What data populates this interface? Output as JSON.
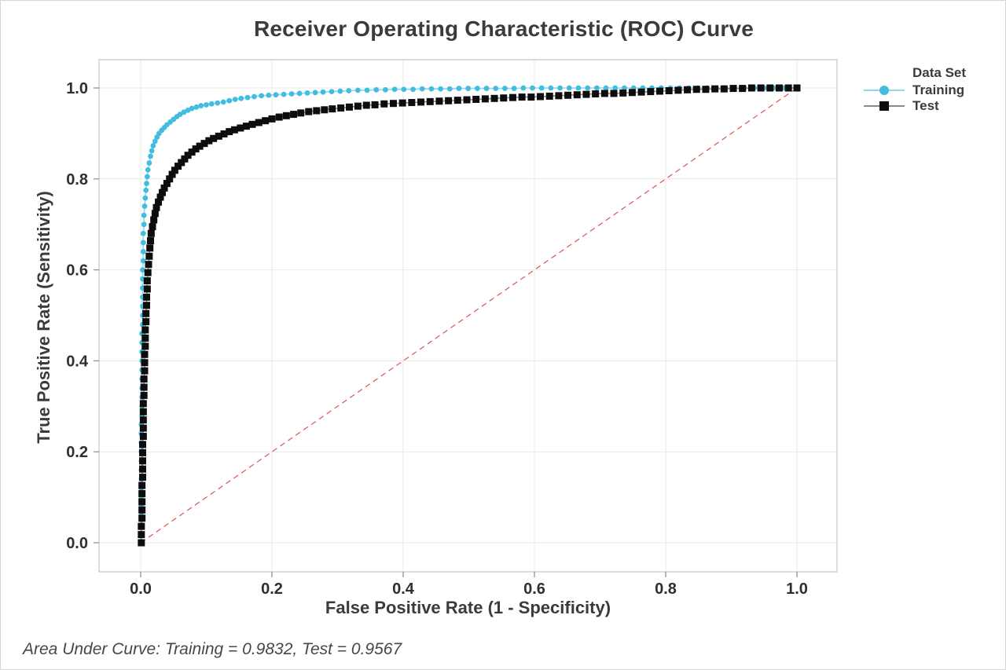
{
  "figure": {
    "footer": "Area Under Curve: Training = 0.9832, Test = 0.9567"
  },
  "chart_data": {
    "type": "line",
    "title": "Receiver Operating Characteristic (ROC) Curve",
    "xlabel": "False Positive Rate (1 - Specificity)",
    "ylabel": "True Positive Rate (Sensitivity)",
    "xlim": [
      0,
      1
    ],
    "ylim": [
      0,
      1
    ],
    "grid": true,
    "xticks": {
      "values": [
        0,
        0.2,
        0.4,
        0.6,
        0.8,
        1.0
      ],
      "labels": [
        "0.0",
        "0.2",
        "0.4",
        "0.6",
        "0.8",
        "1.0"
      ]
    },
    "yticks": {
      "values": [
        0,
        0.2,
        0.4,
        0.6,
        0.8,
        1.0
      ],
      "labels": [
        "0.0",
        "0.2",
        "0.4",
        "0.6",
        "0.8",
        "1.0"
      ]
    },
    "legend": {
      "title": "Data Set",
      "position": "right"
    },
    "annotations": {
      "area_under_curve": {
        "Training": 0.9832,
        "Test": 0.9567
      }
    },
    "reference_line": {
      "name": "chance-diagonal",
      "from": [
        0,
        0
      ],
      "to": [
        1,
        1
      ],
      "style": "dashed",
      "color": "#e05254"
    },
    "colors": {
      "grid": "#e9e9e9",
      "plot_border": "#c6c6c6",
      "tick_mark": "#8a8a8a",
      "tick_text": "#2f2f2f"
    },
    "series": [
      {
        "name": "Training",
        "marker": "circle",
        "marker_color": "#41bedf",
        "line_color": "#8fd7ec",
        "auc": 0.9832,
        "points": [
          [
            0,
            0
          ],
          [
            0,
            0.02
          ],
          [
            0.001,
            0.04
          ],
          [
            0.001,
            0.06
          ],
          [
            0.001,
            0.08
          ],
          [
            0.001,
            0.1
          ],
          [
            0.001,
            0.12
          ],
          [
            0.001,
            0.14
          ],
          [
            0.001,
            0.16
          ],
          [
            0.001,
            0.18
          ],
          [
            0.001,
            0.2
          ],
          [
            0.001,
            0.22
          ],
          [
            0.001,
            0.24
          ],
          [
            0.001,
            0.26
          ],
          [
            0.002,
            0.28
          ],
          [
            0.002,
            0.3
          ],
          [
            0.002,
            0.32
          ],
          [
            0.002,
            0.34
          ],
          [
            0.002,
            0.36
          ],
          [
            0.002,
            0.38
          ],
          [
            0.002,
            0.4
          ],
          [
            0.002,
            0.42
          ],
          [
            0.002,
            0.44
          ],
          [
            0.002,
            0.46
          ],
          [
            0.003,
            0.48
          ],
          [
            0.003,
            0.5
          ],
          [
            0.003,
            0.52
          ],
          [
            0.003,
            0.54
          ],
          [
            0.003,
            0.56
          ],
          [
            0.003,
            0.58
          ],
          [
            0.003,
            0.6
          ],
          [
            0.004,
            0.62
          ],
          [
            0.004,
            0.64
          ],
          [
            0.004,
            0.66
          ],
          [
            0.004,
            0.68
          ],
          [
            0.005,
            0.7
          ],
          [
            0.005,
            0.72
          ],
          [
            0.006,
            0.74
          ],
          [
            0.007,
            0.758
          ],
          [
            0.008,
            0.775
          ],
          [
            0.009,
            0.79
          ],
          [
            0.01,
            0.805
          ],
          [
            0.011,
            0.82
          ],
          [
            0.013,
            0.835
          ],
          [
            0.015,
            0.85
          ],
          [
            0.017,
            0.862
          ],
          [
            0.019,
            0.873
          ],
          [
            0.022,
            0.883
          ],
          [
            0.025,
            0.892
          ],
          [
            0.028,
            0.9
          ],
          [
            0.032,
            0.907
          ],
          [
            0.036,
            0.913
          ],
          [
            0.04,
            0.919
          ],
          [
            0.045,
            0.925
          ],
          [
            0.05,
            0.931
          ],
          [
            0.055,
            0.937
          ],
          [
            0.06,
            0.942
          ],
          [
            0.066,
            0.947
          ],
          [
            0.072,
            0.951
          ],
          [
            0.078,
            0.955
          ],
          [
            0.085,
            0.958
          ],
          [
            0.092,
            0.961
          ],
          [
            0.1,
            0.963
          ],
          [
            0.108,
            0.965
          ],
          [
            0.117,
            0.967
          ],
          [
            0.126,
            0.969
          ],
          [
            0.135,
            0.972
          ],
          [
            0.144,
            0.975
          ],
          [
            0.153,
            0.977
          ],
          [
            0.163,
            0.979
          ],
          [
            0.173,
            0.981
          ],
          [
            0.184,
            0.983
          ],
          [
            0.195,
            0.984
          ],
          [
            0.206,
            0.985
          ],
          [
            0.218,
            0.986
          ],
          [
            0.23,
            0.987
          ],
          [
            0.242,
            0.988
          ],
          [
            0.254,
            0.989
          ],
          [
            0.266,
            0.99
          ],
          [
            0.278,
            0.991
          ],
          [
            0.291,
            0.992
          ],
          [
            0.304,
            0.993
          ],
          [
            0.317,
            0.994
          ],
          [
            0.331,
            0.995
          ],
          [
            0.345,
            0.995
          ],
          [
            0.359,
            0.996
          ],
          [
            0.373,
            0.996
          ],
          [
            0.387,
            0.997
          ],
          [
            0.401,
            0.997
          ],
          [
            0.415,
            0.997
          ],
          [
            0.429,
            0.998
          ],
          [
            0.443,
            0.998
          ],
          [
            0.457,
            0.998
          ],
          [
            0.471,
            0.998
          ],
          [
            0.485,
            0.999
          ],
          [
            0.499,
            0.999
          ],
          [
            0.513,
            0.999
          ],
          [
            0.527,
            0.999
          ],
          [
            0.541,
            0.999
          ],
          [
            0.555,
            0.999
          ],
          [
            0.569,
            0.999
          ],
          [
            0.583,
            1
          ],
          [
            0.597,
            1
          ],
          [
            0.611,
            1
          ],
          [
            0.625,
            1
          ],
          [
            0.639,
            1
          ],
          [
            0.653,
            1
          ],
          [
            0.667,
            1
          ],
          [
            0.681,
            1
          ],
          [
            0.695,
            1
          ],
          [
            0.709,
            1
          ],
          [
            0.723,
            1
          ],
          [
            0.737,
            1
          ],
          [
            0.751,
            1
          ],
          [
            0.765,
            1
          ],
          [
            0.779,
            1
          ],
          [
            0.793,
            1
          ],
          [
            0.807,
            1
          ],
          [
            0.821,
            1
          ],
          [
            0.835,
            1
          ],
          [
            0.849,
            1
          ],
          [
            0.863,
            1
          ],
          [
            0.877,
            1
          ],
          [
            0.891,
            1
          ],
          [
            0.905,
            1
          ],
          [
            0.92,
            1
          ],
          [
            0.935,
            1
          ],
          [
            0.95,
            1
          ],
          [
            0.965,
            1
          ],
          [
            0.98,
            1
          ],
          [
            1,
            1
          ]
        ]
      },
      {
        "name": "Test",
        "marker": "square",
        "marker_color": "#0d0d0d",
        "line_color": "#8a8a8a",
        "auc": 0.9567,
        "points": [
          [
            0.001,
            0
          ],
          [
            0.001,
            0.018
          ],
          [
            0.001,
            0.036
          ],
          [
            0.002,
            0.054
          ],
          [
            0.002,
            0.072
          ],
          [
            0.002,
            0.09
          ],
          [
            0.002,
            0.108
          ],
          [
            0.002,
            0.126
          ],
          [
            0.003,
            0.144
          ],
          [
            0.003,
            0.162
          ],
          [
            0.003,
            0.18
          ],
          [
            0.003,
            0.198
          ],
          [
            0.003,
            0.216
          ],
          [
            0.004,
            0.234
          ],
          [
            0.004,
            0.252
          ],
          [
            0.004,
            0.27
          ],
          [
            0.004,
            0.288
          ],
          [
            0.004,
            0.306
          ],
          [
            0.005,
            0.324
          ],
          [
            0.005,
            0.342
          ],
          [
            0.005,
            0.36
          ],
          [
            0.006,
            0.378
          ],
          [
            0.006,
            0.396
          ],
          [
            0.006,
            0.414
          ],
          [
            0.007,
            0.432
          ],
          [
            0.007,
            0.45
          ],
          [
            0.007,
            0.468
          ],
          [
            0.008,
            0.486
          ],
          [
            0.008,
            0.504
          ],
          [
            0.009,
            0.522
          ],
          [
            0.009,
            0.54
          ],
          [
            0.01,
            0.558
          ],
          [
            0.01,
            0.576
          ],
          [
            0.011,
            0.594
          ],
          [
            0.012,
            0.612
          ],
          [
            0.013,
            0.63
          ],
          [
            0.014,
            0.648
          ],
          [
            0.015,
            0.664
          ],
          [
            0.016,
            0.68
          ],
          [
            0.018,
            0.695
          ],
          [
            0.02,
            0.71
          ],
          [
            0.022,
            0.724
          ],
          [
            0.024,
            0.737
          ],
          [
            0.027,
            0.749
          ],
          [
            0.03,
            0.76
          ],
          [
            0.033,
            0.77
          ],
          [
            0.036,
            0.78
          ],
          [
            0.04,
            0.79
          ],
          [
            0.044,
            0.8
          ],
          [
            0.048,
            0.81
          ],
          [
            0.052,
            0.819
          ],
          [
            0.057,
            0.828
          ],
          [
            0.062,
            0.836
          ],
          [
            0.067,
            0.844
          ],
          [
            0.072,
            0.852
          ],
          [
            0.078,
            0.859
          ],
          [
            0.084,
            0.866
          ],
          [
            0.09,
            0.872
          ],
          [
            0.097,
            0.878
          ],
          [
            0.104,
            0.884
          ],
          [
            0.111,
            0.889
          ],
          [
            0.119,
            0.894
          ],
          [
            0.127,
            0.899
          ],
          [
            0.135,
            0.904
          ],
          [
            0.143,
            0.908
          ],
          [
            0.152,
            0.912
          ],
          [
            0.161,
            0.916
          ],
          [
            0.17,
            0.92
          ],
          [
            0.18,
            0.924
          ],
          [
            0.19,
            0.928
          ],
          [
            0.2,
            0.932
          ],
          [
            0.211,
            0.936
          ],
          [
            0.222,
            0.939
          ],
          [
            0.233,
            0.942
          ],
          [
            0.244,
            0.945
          ],
          [
            0.256,
            0.948
          ],
          [
            0.268,
            0.95
          ],
          [
            0.28,
            0.952
          ],
          [
            0.292,
            0.954
          ],
          [
            0.305,
            0.956
          ],
          [
            0.318,
            0.958
          ],
          [
            0.331,
            0.96
          ],
          [
            0.344,
            0.962
          ],
          [
            0.357,
            0.963
          ],
          [
            0.371,
            0.965
          ],
          [
            0.385,
            0.966
          ],
          [
            0.399,
            0.967
          ],
          [
            0.413,
            0.968
          ],
          [
            0.427,
            0.969
          ],
          [
            0.441,
            0.97
          ],
          [
            0.455,
            0.971
          ],
          [
            0.469,
            0.972
          ],
          [
            0.483,
            0.973
          ],
          [
            0.497,
            0.974
          ],
          [
            0.511,
            0.975
          ],
          [
            0.525,
            0.976
          ],
          [
            0.539,
            0.977
          ],
          [
            0.553,
            0.978
          ],
          [
            0.567,
            0.979
          ],
          [
            0.581,
            0.98
          ],
          [
            0.595,
            0.98
          ],
          [
            0.609,
            0.981
          ],
          [
            0.623,
            0.982
          ],
          [
            0.637,
            0.983
          ],
          [
            0.651,
            0.984
          ],
          [
            0.665,
            0.985
          ],
          [
            0.679,
            0.986
          ],
          [
            0.693,
            0.987
          ],
          [
            0.707,
            0.988
          ],
          [
            0.721,
            0.988
          ],
          [
            0.735,
            0.989
          ],
          [
            0.749,
            0.99
          ],
          [
            0.763,
            0.991
          ],
          [
            0.777,
            0.992
          ],
          [
            0.791,
            0.993
          ],
          [
            0.805,
            0.994
          ],
          [
            0.819,
            0.995
          ],
          [
            0.833,
            0.996
          ],
          [
            0.847,
            0.997
          ],
          [
            0.861,
            0.997
          ],
          [
            0.875,
            0.998
          ],
          [
            0.889,
            0.998
          ],
          [
            0.903,
            0.999
          ],
          [
            0.917,
            0.999
          ],
          [
            0.931,
            1
          ],
          [
            0.945,
            1
          ],
          [
            0.959,
            1
          ],
          [
            0.973,
            1
          ],
          [
            0.987,
            1
          ],
          [
            1,
            1
          ]
        ]
      }
    ]
  }
}
